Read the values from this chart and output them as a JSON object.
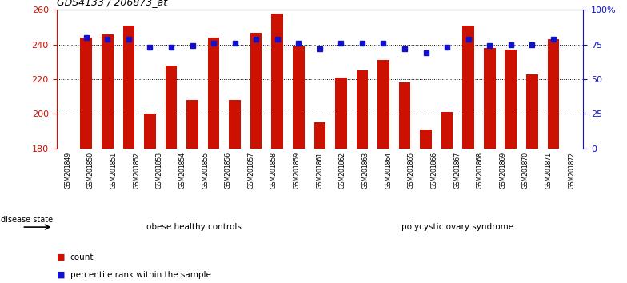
{
  "title": "GDS4133 / 206873_at",
  "samples": [
    "GSM201849",
    "GSM201850",
    "GSM201851",
    "GSM201852",
    "GSM201853",
    "GSM201854",
    "GSM201855",
    "GSM201856",
    "GSM201857",
    "GSM201858",
    "GSM201859",
    "GSM201861",
    "GSM201862",
    "GSM201863",
    "GSM201864",
    "GSM201865",
    "GSM201866",
    "GSM201867",
    "GSM201868",
    "GSM201869",
    "GSM201870",
    "GSM201871",
    "GSM201872"
  ],
  "counts": [
    244,
    246,
    251,
    200,
    228,
    208,
    244,
    208,
    247,
    258,
    239,
    195,
    221,
    225,
    231,
    218,
    191,
    201,
    251,
    238,
    237,
    223,
    243
  ],
  "percentiles": [
    80,
    79,
    79,
    73,
    73,
    74,
    76,
    76,
    79,
    79,
    76,
    72,
    76,
    76,
    76,
    72,
    69,
    73,
    79,
    74,
    75,
    75,
    79
  ],
  "group1_count": 12,
  "group1_label": "obese healthy controls",
  "group2_label": "polycystic ovary syndrome",
  "group1_color": "#ccffcc",
  "group2_color": "#55cc55",
  "bar_color": "#cc1100",
  "dot_color": "#1111cc",
  "ymin": 180,
  "ymax": 260,
  "yticks": [
    180,
    200,
    220,
    240,
    260
  ],
  "y2ticks": [
    0,
    25,
    50,
    75,
    100
  ],
  "y2labels": [
    "0",
    "25",
    "50",
    "75",
    "100%"
  ],
  "legend_count_label": "count",
  "legend_pct_label": "percentile rank within the sample",
  "disease_state_label": "disease state"
}
